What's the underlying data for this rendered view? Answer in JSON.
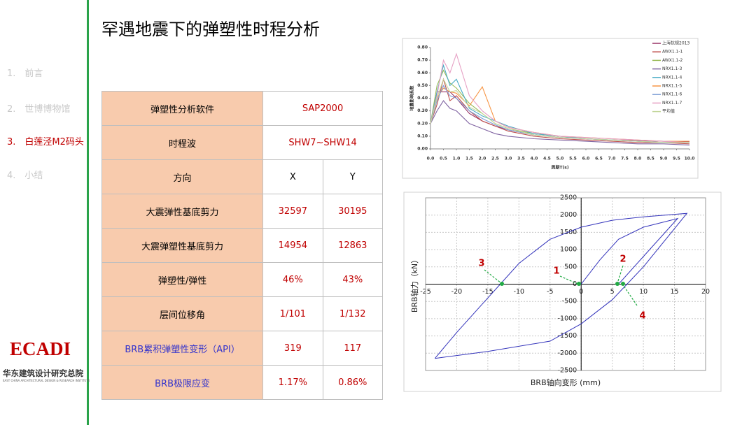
{
  "sidebar": {
    "items": [
      "1.　前言",
      "2.　世博博物馆",
      "3.　白莲泾M2码头",
      "4.　小结"
    ],
    "logo": "ECADI",
    "org": "华东建筑设计研究总院",
    "org_en": "EAST CHINA ARCHITECTURAL DESIGN & RESEARCH INSTITUTE"
  },
  "title": "罕遇地震下的弹塑性时程分析",
  "table": {
    "rows": [
      [
        "弹塑性分析软件",
        "SAP2000"
      ],
      [
        "时程波",
        "SHW7~SHW14"
      ],
      [
        "方向",
        "X",
        "Y"
      ],
      [
        "大震弹性基底剪力",
        "32597",
        "30195"
      ],
      [
        "大震弹塑性基底剪力",
        "14954",
        "12863"
      ],
      [
        "弹塑性/弹性",
        "46%",
        "43%"
      ],
      [
        "层间位移角",
        "1/101",
        "1/132"
      ],
      [
        "BRB累积弹塑性变形（API）",
        "319",
        "117"
      ],
      [
        "BRB极限应变",
        "1.17%",
        "0.86%"
      ]
    ]
  },
  "chart_data": [
    {
      "type": "line",
      "ylabel": "地震影响系数",
      "xlabel": "周期T(s)",
      "grid": false,
      "legend": "right",
      "x": [
        0,
        0.25,
        0.5,
        0.75,
        1,
        1.5,
        2,
        2.5,
        3,
        4,
        5,
        6,
        7,
        8,
        9,
        10
      ],
      "xlim": [
        0,
        10
      ],
      "ylim": [
        0,
        0.8
      ],
      "xticks": [
        {
          "value": 0,
          "label": "0.0"
        },
        {
          "value": 0.5,
          "label": "0.5"
        },
        {
          "value": 1,
          "label": "1.0"
        },
        {
          "value": 1.5,
          "label": "1.5"
        },
        {
          "value": 2,
          "label": "2.0"
        },
        {
          "value": 2.5,
          "label": "2.5"
        },
        {
          "value": 3,
          "label": "3.0"
        },
        {
          "value": 3.5,
          "label": "3.5"
        },
        {
          "value": 4,
          "label": "4.0"
        },
        {
          "value": 4.5,
          "label": "4.5"
        },
        {
          "value": 5,
          "label": "5.0"
        },
        {
          "value": 5.5,
          "label": "5.5"
        },
        {
          "value": 6,
          "label": "6.0"
        },
        {
          "value": 6.5,
          "label": "6.5"
        },
        {
          "value": 7,
          "label": "7.0"
        },
        {
          "value": 7.5,
          "label": "7.5"
        },
        {
          "value": 8,
          "label": "8.0"
        },
        {
          "value": 8.5,
          "label": "8.5"
        },
        {
          "value": 9,
          "label": "9.0"
        },
        {
          "value": 9.5,
          "label": "9.5"
        },
        {
          "value": 10,
          "label": "10.0"
        }
      ],
      "yticks": [
        {
          "value": 0,
          "label": "0.00"
        },
        {
          "value": 0.1,
          "label": "0.10"
        },
        {
          "value": 0.2,
          "label": "0.20"
        },
        {
          "value": 0.3,
          "label": "0.30"
        },
        {
          "value": 0.4,
          "label": "0.40"
        },
        {
          "value": 0.5,
          "label": "0.50"
        },
        {
          "value": 0.6,
          "label": "0.60"
        },
        {
          "value": 0.7,
          "label": "0.70"
        },
        {
          "value": 0.8,
          "label": "0.80"
        }
      ],
      "series": [
        {
          "name": "上海抗规2013",
          "color": "#993366",
          "values": [
            0.2,
            0.45,
            0.45,
            0.45,
            0.4,
            0.28,
            0.22,
            0.18,
            0.15,
            0.11,
            0.09,
            0.08,
            0.07,
            0.065,
            0.06,
            0.055
          ]
        },
        {
          "name": "AWX1.1-1",
          "color": "#c0504d",
          "values": [
            0.2,
            0.35,
            0.55,
            0.38,
            0.42,
            0.3,
            0.22,
            0.18,
            0.14,
            0.1,
            0.08,
            0.07,
            0.06,
            0.05,
            0.05,
            0.04
          ]
        },
        {
          "name": "AWX1.1-2",
          "color": "#9bbb59",
          "values": [
            0.2,
            0.5,
            0.62,
            0.52,
            0.48,
            0.36,
            0.28,
            0.2,
            0.16,
            0.12,
            0.1,
            0.08,
            0.07,
            0.06,
            0.05,
            0.05
          ]
        },
        {
          "name": "NRX1.1-3",
          "color": "#8064a2",
          "values": [
            0.2,
            0.3,
            0.38,
            0.32,
            0.3,
            0.2,
            0.16,
            0.12,
            0.1,
            0.08,
            0.07,
            0.06,
            0.05,
            0.04,
            0.04,
            0.03
          ]
        },
        {
          "name": "NRX1.1-4",
          "color": "#4bacc6",
          "values": [
            0.2,
            0.45,
            0.66,
            0.5,
            0.55,
            0.32,
            0.26,
            0.22,
            0.18,
            0.12,
            0.1,
            0.08,
            0.07,
            0.06,
            0.05,
            0.05
          ]
        },
        {
          "name": "NRX1.1-5",
          "color": "#f79646",
          "values": [
            0.2,
            0.4,
            0.48,
            0.45,
            0.44,
            0.34,
            0.49,
            0.22,
            0.17,
            0.13,
            0.1,
            0.09,
            0.08,
            0.07,
            0.06,
            0.06
          ]
        },
        {
          "name": "NRX1.1-6",
          "color": "#7f9fd6",
          "values": [
            0.2,
            0.38,
            0.5,
            0.42,
            0.4,
            0.3,
            0.24,
            0.19,
            0.15,
            0.11,
            0.09,
            0.08,
            0.07,
            0.06,
            0.05,
            0.05
          ]
        },
        {
          "name": "NRX1.1-7",
          "color": "#e6a0c4",
          "values": [
            0.2,
            0.42,
            0.7,
            0.6,
            0.75,
            0.42,
            0.3,
            0.22,
            0.17,
            0.13,
            0.1,
            0.09,
            0.08,
            0.07,
            0.06,
            0.05
          ]
        },
        {
          "name": "平均值",
          "color": "#c4d79b",
          "values": [
            0.2,
            0.4,
            0.55,
            0.45,
            0.46,
            0.33,
            0.28,
            0.2,
            0.16,
            0.11,
            0.09,
            0.08,
            0.07,
            0.06,
            0.05,
            0.05
          ]
        }
      ]
    },
    {
      "type": "line",
      "ylabel": "BRB轴力（kN）",
      "xlabel": "BRB轴向变形 (mm)",
      "grid": true,
      "xlim": [
        -25,
        20
      ],
      "ylim": [
        -2500,
        2500
      ],
      "xticks": [
        -25,
        -20,
        -15,
        -10,
        -5,
        0,
        5,
        10,
        15,
        20
      ],
      "yticks": [
        -2500,
        -2000,
        -1500,
        -1000,
        -500,
        0,
        500,
        1000,
        1500,
        2000,
        2500
      ],
      "series": [
        {
          "color": "#3333bb",
          "x": [
            -23.5,
            -15,
            -5,
            0,
            5,
            10,
            17,
            10,
            5,
            0,
            -5,
            -10,
            -13,
            -16,
            -20,
            -23.5
          ],
          "values": [
            -2150,
            -1950,
            -1650,
            -1150,
            -450,
            500,
            2050,
            1950,
            1850,
            1650,
            1300,
            600,
            0,
            -600,
            -1400,
            -2150
          ]
        },
        {
          "color": "#3333bb",
          "x": [
            6,
            10,
            15.5,
            10,
            6,
            3,
            0
          ],
          "values": [
            0,
            800,
            1900,
            1650,
            1300,
            700,
            0
          ]
        }
      ],
      "annotations": [
        "1",
        "2",
        "3",
        "4"
      ]
    }
  ]
}
